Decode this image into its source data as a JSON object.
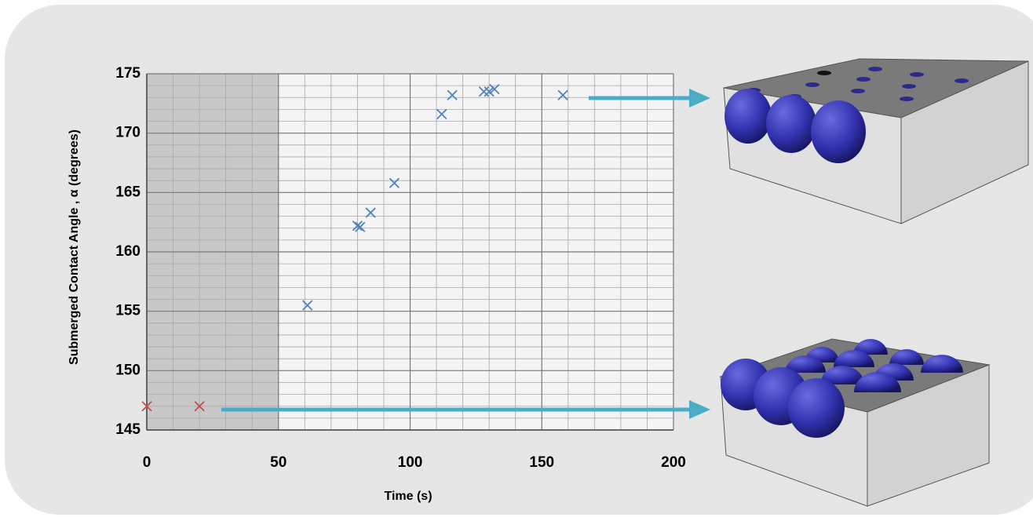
{
  "chart_data": {
    "type": "scatter",
    "xlabel": "Time (s)",
    "ylabel": "Submerged Contact Angle , α (degrees)",
    "series": [
      {
        "color": "#c0504d",
        "x": [
          0,
          20
        ],
        "values": [
          147,
          147
        ]
      },
      {
        "color": "#4f81bd",
        "x": [
          61,
          80,
          81,
          85,
          94,
          112,
          116,
          128,
          130,
          132,
          158
        ],
        "values": [
          155.5,
          162.2,
          162.1,
          163.3,
          165.8,
          171.6,
          173.2,
          173.5,
          173.5,
          173.7,
          173.2
        ]
      }
    ],
    "xlim": [
      0,
      200
    ],
    "ylim": [
      145,
      175
    ],
    "xticks": [
      0,
      50,
      100,
      150,
      200
    ],
    "yticks": [
      145,
      150,
      155,
      160,
      165,
      170,
      175
    ],
    "xminorticks": [
      10,
      20,
      30,
      40,
      60,
      70,
      80,
      90,
      110,
      120,
      130,
      140,
      160,
      170,
      180,
      190
    ],
    "yminorticks": [
      146,
      147,
      148,
      149,
      151,
      152,
      153,
      154,
      156,
      157,
      158,
      159,
      161,
      162,
      163,
      164,
      166,
      167,
      168,
      169,
      171,
      172,
      173,
      174
    ],
    "grid": true,
    "shaded_xrange": [
      0,
      50
    ],
    "shaded_color": "#c8c8c8"
  }
}
